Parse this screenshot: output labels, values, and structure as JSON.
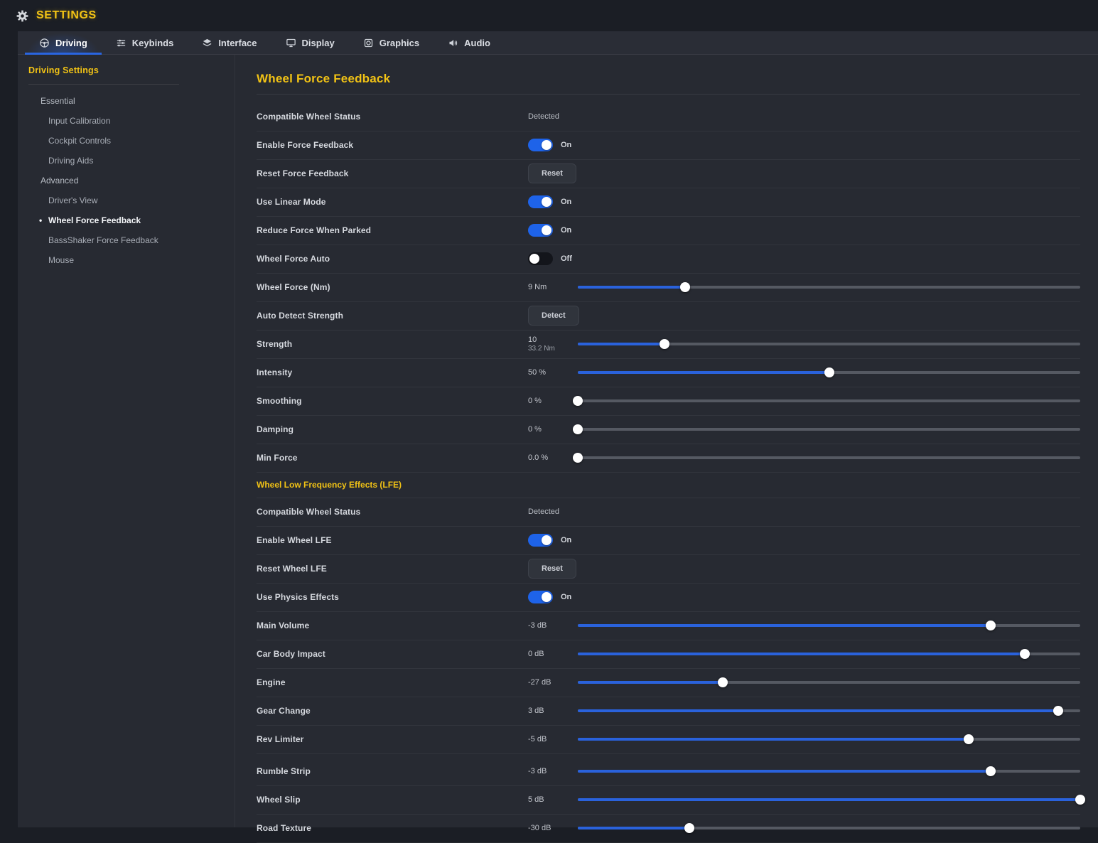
{
  "colors": {
    "accent_yellow": "#f2c315",
    "accent_blue": "#2a65e0",
    "toggle_on": "#1e63e9",
    "slider_fill": "#2a62dc"
  },
  "header": {
    "title": "SETTINGS"
  },
  "tabs": [
    {
      "label": "Driving",
      "icon": "steering-wheel",
      "active": true
    },
    {
      "label": "Keybinds",
      "icon": "sliders",
      "active": false
    },
    {
      "label": "Interface",
      "icon": "layers",
      "active": false
    },
    {
      "label": "Display",
      "icon": "monitor",
      "active": false
    },
    {
      "label": "Graphics",
      "icon": "chip",
      "active": false
    },
    {
      "label": "Audio",
      "icon": "speaker",
      "active": false
    }
  ],
  "sidebar": {
    "title": "Driving Settings",
    "items": [
      {
        "label": "Essential",
        "type": "group",
        "active": false
      },
      {
        "label": "Input Calibration",
        "type": "child",
        "active": false
      },
      {
        "label": "Cockpit Controls",
        "type": "child",
        "active": false
      },
      {
        "label": "Driving Aids",
        "type": "child",
        "active": false
      },
      {
        "label": "Advanced",
        "type": "group",
        "active": false
      },
      {
        "label": "Driver's View",
        "type": "child",
        "active": false
      },
      {
        "label": "Wheel Force Feedback",
        "type": "child",
        "active": true
      },
      {
        "label": "BassShaker Force Feedback",
        "type": "child",
        "active": false
      },
      {
        "label": "Mouse",
        "type": "child",
        "active": false
      }
    ]
  },
  "main": {
    "title": "Wheel Force Feedback",
    "rows": [
      {
        "type": "status",
        "label": "Compatible Wheel Status",
        "value": "Detected"
      },
      {
        "type": "toggle",
        "label": "Enable Force Feedback",
        "state": "On",
        "on": true
      },
      {
        "type": "button",
        "label": "Reset Force Feedback",
        "button": "Reset"
      },
      {
        "type": "toggle",
        "label": "Use Linear Mode",
        "state": "On",
        "on": true
      },
      {
        "type": "toggle",
        "label": "Reduce Force When Parked",
        "state": "On",
        "on": true
      },
      {
        "type": "toggle",
        "label": "Wheel Force Auto",
        "state": "Off",
        "on": false
      },
      {
        "type": "slider",
        "label": "Wheel Force (Nm)",
        "value": "9 Nm",
        "percent": 21.4
      },
      {
        "type": "button",
        "label": "Auto Detect Strength",
        "button": "Detect"
      },
      {
        "type": "slider",
        "label": "Strength",
        "value": "10",
        "value2": "33.2 Nm",
        "percent": 17.2
      },
      {
        "type": "slider",
        "label": "Intensity",
        "value": "50 %",
        "percent": 50
      },
      {
        "type": "slider",
        "label": "Smoothing",
        "value": "0 %",
        "percent": 0
      },
      {
        "type": "slider",
        "label": "Damping",
        "value": "0 %",
        "percent": 0
      },
      {
        "type": "slider",
        "label": "Min Force",
        "value": "0.0 %",
        "percent": 0
      },
      {
        "type": "section",
        "label": "Wheel Low Frequency Effects (LFE)"
      },
      {
        "type": "status",
        "label": "Compatible Wheel Status",
        "value": "Detected"
      },
      {
        "type": "toggle",
        "label": "Enable Wheel LFE",
        "state": "On",
        "on": true
      },
      {
        "type": "button",
        "label": "Reset Wheel LFE",
        "button": "Reset"
      },
      {
        "type": "toggle",
        "label": "Use Physics Effects",
        "state": "On",
        "on": true
      },
      {
        "type": "slider",
        "label": "Main Volume",
        "value": "-3 dB",
        "percent": 82.2
      },
      {
        "type": "slider",
        "label": "Car Body Impact",
        "value": "0 dB",
        "percent": 88.9
      },
      {
        "type": "slider",
        "label": "Engine",
        "value": "-27 dB",
        "percent": 28.9
      },
      {
        "type": "slider",
        "label": "Gear Change",
        "value": "3 dB",
        "percent": 95.6
      },
      {
        "type": "slider",
        "label": "Rev Limiter",
        "value": "-5 dB",
        "percent": 77.8
      },
      {
        "type": "gap"
      },
      {
        "type": "slider",
        "label": "Rumble Strip",
        "value": "-3 dB",
        "percent": 82.2
      },
      {
        "type": "slider",
        "label": "Wheel Slip",
        "value": "5 dB",
        "percent": 100
      },
      {
        "type": "slider",
        "label": "Road Texture",
        "value": "-30 dB",
        "percent": 22.2
      }
    ]
  }
}
